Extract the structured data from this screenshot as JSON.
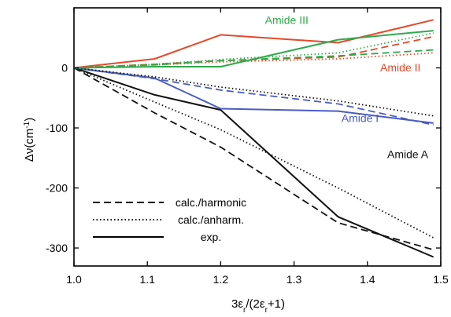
{
  "chart_data": {
    "type": "line",
    "xlabel_parts": [
      "3ε",
      "r",
      "/(2ε",
      "r",
      "+1)"
    ],
    "ylabel_parts": [
      "Δν(cm",
      "-1",
      ")"
    ],
    "xlim": [
      1.0,
      1.5
    ],
    "ylim": [
      -330,
      100
    ],
    "xticks": [
      1.0,
      1.1,
      1.2,
      1.3,
      1.4,
      1.5
    ],
    "xtick_labels": [
      "1.0",
      "1.1",
      "1.2",
      "1.3",
      "1.4",
      "1.5"
    ],
    "yticks": [
      0,
      -100,
      -200,
      -300
    ],
    "ytick_labels": [
      "0",
      "-100",
      "-200",
      "-300"
    ],
    "grid": false,
    "legend": {
      "placement": "lower-left",
      "entries": [
        {
          "label": "calc./harmonic",
          "style": "dashed"
        },
        {
          "label": "calc./anharm.",
          "style": "dotted"
        },
        {
          "label": "exp.",
          "style": "solid"
        }
      ]
    },
    "annotations": [
      {
        "text": "Amide III",
        "color": "#2eaa4a",
        "x": 1.29,
        "y": 73
      },
      {
        "text": "Amide II",
        "color": "#e24a2a",
        "x": 1.445,
        "y": -6
      },
      {
        "text": "Amide I",
        "color": "#4a5cc0",
        "x": 1.39,
        "y": -90
      },
      {
        "text": "Amide A",
        "color": "#111111",
        "x": 1.455,
        "y": -150
      }
    ],
    "series": [
      {
        "group": "Amide A",
        "style": "solid",
        "color": "#111111",
        "x": [
          1.0,
          1.11,
          1.2,
          1.36,
          1.49
        ],
        "y": [
          0,
          -45,
          -70,
          -248,
          -315
        ]
      },
      {
        "group": "Amide A",
        "style": "dashed",
        "color": "#111111",
        "x": [
          1.0,
          1.11,
          1.2,
          1.36,
          1.49
        ],
        "y": [
          0,
          -75,
          -132,
          -258,
          -303
        ]
      },
      {
        "group": "Amide A",
        "style": "dotted",
        "color": "#111111",
        "x": [
          1.0,
          1.11,
          1.2,
          1.36,
          1.49
        ],
        "y": [
          0,
          -57,
          -103,
          -200,
          -283
        ]
      },
      {
        "group": "Amide I",
        "style": "solid",
        "color": "#4a5cc0",
        "x": [
          1.0,
          1.11,
          1.2,
          1.36,
          1.49
        ],
        "y": [
          0,
          -17,
          -68,
          -72,
          -92
        ]
      },
      {
        "group": "Amide I",
        "style": "dashed",
        "color": "#4a5cc0",
        "x": [
          1.0,
          1.11,
          1.2,
          1.36,
          1.49
        ],
        "y": [
          0,
          -18,
          -37,
          -60,
          -95
        ]
      },
      {
        "group": "Amide I",
        "style": "dotted",
        "color": "#111111",
        "x": [
          1.0,
          1.11,
          1.2,
          1.36,
          1.49
        ],
        "y": [
          0,
          -15,
          -32,
          -55,
          -80
        ]
      },
      {
        "group": "Amide II",
        "style": "solid",
        "color": "#e24a2a",
        "x": [
          1.0,
          1.11,
          1.2,
          1.36,
          1.49
        ],
        "y": [
          0,
          15,
          55,
          42,
          80
        ]
      },
      {
        "group": "Amide II",
        "style": "dashed",
        "color": "#e24a2a",
        "x": [
          1.0,
          1.11,
          1.2,
          1.36,
          1.49
        ],
        "y": [
          0,
          6,
          12,
          18,
          52
        ]
      },
      {
        "group": "Amide II",
        "style": "dotted",
        "color": "#e24a2a",
        "x": [
          1.0,
          1.11,
          1.2,
          1.36,
          1.49
        ],
        "y": [
          0,
          5,
          10,
          15,
          25
        ]
      },
      {
        "group": "Amide III",
        "style": "solid",
        "color": "#2eaa4a",
        "x": [
          1.0,
          1.11,
          1.2,
          1.36,
          1.49
        ],
        "y": [
          0,
          2,
          2,
          47,
          62
        ]
      },
      {
        "group": "Amide III",
        "style": "dashed",
        "color": "#2eaa4a",
        "x": [
          1.0,
          1.11,
          1.2,
          1.36,
          1.49
        ],
        "y": [
          0,
          5,
          12,
          20,
          30
        ]
      },
      {
        "group": "Amide III",
        "style": "dotted",
        "color": "#2eaa4a",
        "x": [
          1.0,
          1.11,
          1.2,
          1.36,
          1.49
        ],
        "y": [
          0,
          6,
          14,
          25,
          58
        ]
      }
    ]
  }
}
